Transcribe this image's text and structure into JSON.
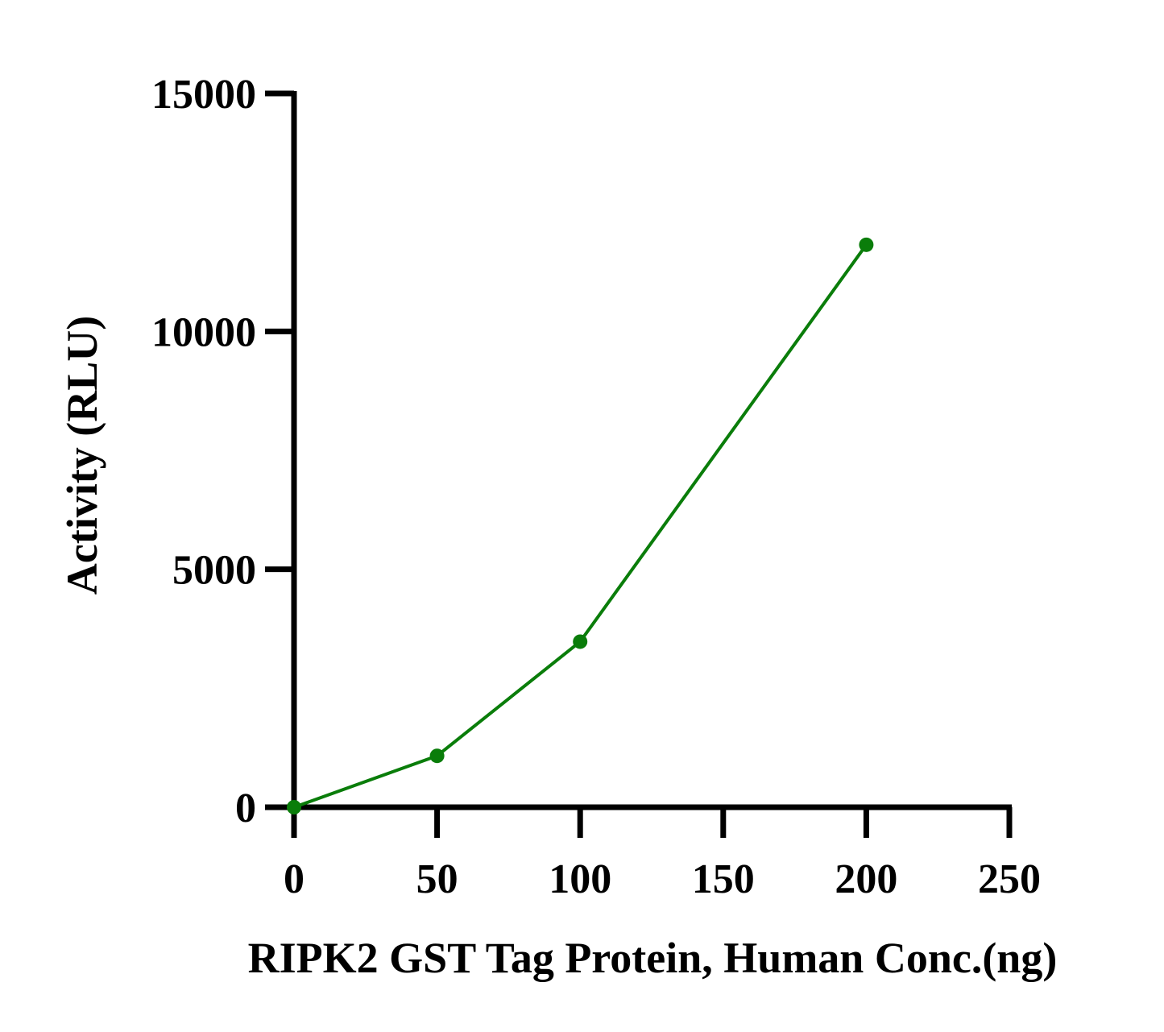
{
  "chart_data": {
    "type": "line",
    "title": "",
    "xlabel": "RIPK2 GST Tag Protein, Human Conc.(ng)",
    "ylabel": "Activity (RLU)",
    "xlim": [
      0,
      250
    ],
    "ylim": [
      0,
      15000
    ],
    "x_ticks": [
      "0",
      "50",
      "100",
      "150",
      "200",
      "250"
    ],
    "y_ticks": [
      "0",
      "5000",
      "10000",
      "15000"
    ],
    "grid": false,
    "series": [
      {
        "x": [
          0,
          50,
          100,
          200
        ],
        "values": [
          0,
          1080,
          3480,
          11820
        ],
        "color": "#0a7d0a"
      }
    ]
  }
}
